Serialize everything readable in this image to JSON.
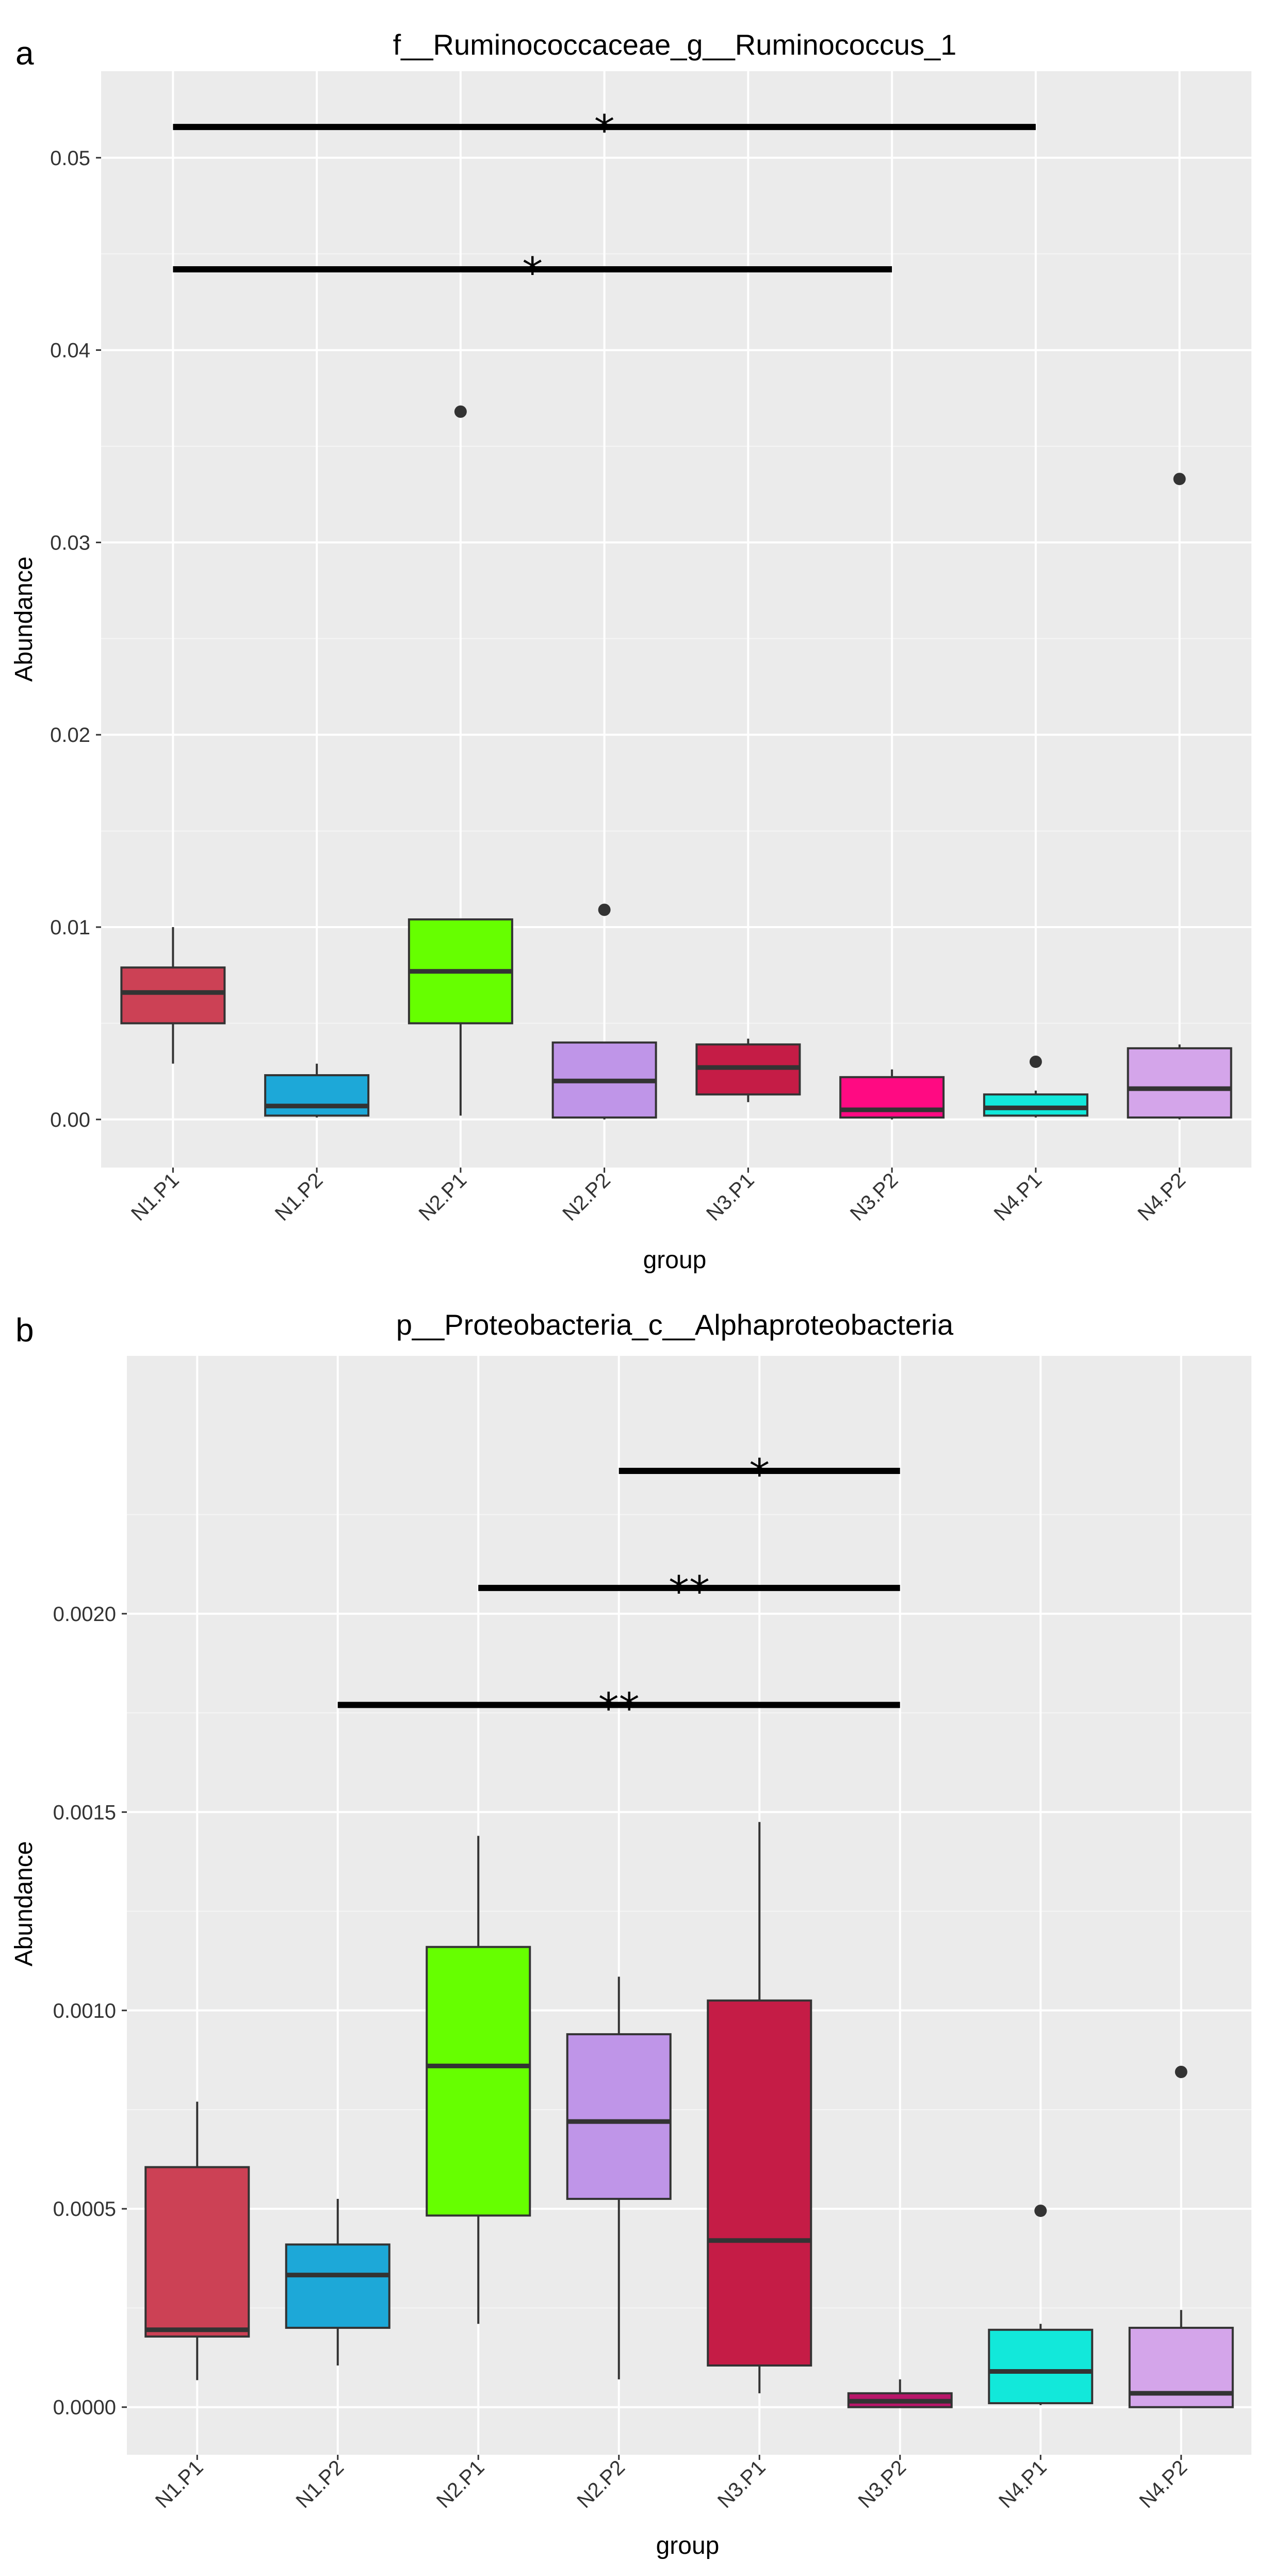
{
  "chart_data": [
    {
      "panel": "a",
      "type": "box",
      "title": "f__Ruminococcaceae_g__Ruminococcus_1",
      "xlabel": "group",
      "ylabel": "Abundance",
      "categories": [
        "N1.P1",
        "N1.P2",
        "N2.P1",
        "N2.P2",
        "N3.P1",
        "N3.P2",
        "N4.P1",
        "N4.P2"
      ],
      "ylim": [
        -0.0025,
        0.0545
      ],
      "yticks": [
        0.0,
        0.01,
        0.02,
        0.03,
        0.04,
        0.05
      ],
      "yticklabels": [
        "0.00",
        "0.01",
        "0.02",
        "0.03",
        "0.04",
        "0.05"
      ],
      "boxes": [
        {
          "group": "N1.P1",
          "color": "#CC4155",
          "lower_whisker": 0.0029,
          "q1": 0.005,
          "median": 0.0066,
          "q3": 0.0079,
          "upper_whisker": 0.01,
          "outliers": []
        },
        {
          "group": "N1.P2",
          "color": "#1DA8D8",
          "lower_whisker": 0.0001,
          "q1": 0.0002,
          "median": 0.0007,
          "q3": 0.0023,
          "upper_whisker": 0.0029,
          "outliers": []
        },
        {
          "group": "N2.P1",
          "color": "#66FF00",
          "lower_whisker": 0.0002,
          "q1": 0.005,
          "median": 0.0077,
          "q3": 0.0104,
          "upper_whisker": 0.0104,
          "outliers": [
            0.0368
          ]
        },
        {
          "group": "N2.P2",
          "color": "#BF95E8",
          "lower_whisker": 0.0,
          "q1": 0.0001,
          "median": 0.002,
          "q3": 0.004,
          "upper_whisker": 0.004,
          "outliers": [
            0.0109
          ]
        },
        {
          "group": "N3.P1",
          "color": "#C51C46",
          "lower_whisker": 0.0009,
          "q1": 0.0013,
          "median": 0.0027,
          "q3": 0.0039,
          "upper_whisker": 0.0042,
          "outliers": []
        },
        {
          "group": "N3.P2",
          "color": "#FF0A82",
          "lower_whisker": 0.0,
          "q1": 0.0001,
          "median": 0.0005,
          "q3": 0.0022,
          "upper_whisker": 0.0026,
          "outliers": []
        },
        {
          "group": "N4.P1",
          "color": "#12E8DA",
          "lower_whisker": 0.0001,
          "q1": 0.0002,
          "median": 0.0006,
          "q3": 0.0013,
          "upper_whisker": 0.0015,
          "outliers": [
            0.003
          ]
        },
        {
          "group": "N4.P2",
          "color": "#D4A5EA",
          "lower_whisker": 0.0,
          "q1": 0.0001,
          "median": 0.0016,
          "q3": 0.0037,
          "upper_whisker": 0.0039,
          "outliers": [
            0.0333
          ]
        }
      ],
      "significance": [
        {
          "from": "N1.P1",
          "to": "N4.P1",
          "y": 0.0516,
          "label": "*"
        },
        {
          "from": "N1.P1",
          "to": "N3.P2",
          "y": 0.0442,
          "label": "*"
        }
      ]
    },
    {
      "panel": "b",
      "type": "box",
      "title": "p__Proteobacteria_c__Alphaproteobacteria",
      "xlabel": "group",
      "ylabel": "Abundance",
      "categories": [
        "N1.P1",
        "N1.P2",
        "N2.P1",
        "N2.P2",
        "N3.P1",
        "N3.P2",
        "N4.P1",
        "N4.P2"
      ],
      "ylim": [
        -0.00012,
        0.00265
      ],
      "yticks": [
        0.0,
        0.0005,
        0.001,
        0.0015,
        0.002
      ],
      "yticklabels": [
        "0.0000",
        "0.0005",
        "0.0010",
        "0.0015",
        "0.0020"
      ],
      "boxes": [
        {
          "group": "N1.P1",
          "color": "#CC4155",
          "lower_whisker": 6.8e-05,
          "q1": 0.000178,
          "median": 0.000195,
          "q3": 0.000605,
          "upper_whisker": 0.00077,
          "outliers": []
        },
        {
          "group": "N1.P2",
          "color": "#1DA8D8",
          "lower_whisker": 0.000105,
          "q1": 0.0002,
          "median": 0.000333,
          "q3": 0.00041,
          "upper_whisker": 0.000525,
          "outliers": []
        },
        {
          "group": "N2.P1",
          "color": "#66FF00",
          "lower_whisker": 0.00021,
          "q1": 0.000483,
          "median": 0.00086,
          "q3": 0.00116,
          "upper_whisker": 0.00144,
          "outliers": []
        },
        {
          "group": "N2.P2",
          "color": "#BF95E8",
          "lower_whisker": 7e-05,
          "q1": 0.000525,
          "median": 0.00072,
          "q3": 0.00094,
          "upper_whisker": 0.001085,
          "outliers": []
        },
        {
          "group": "N3.P1",
          "color": "#C51C46",
          "lower_whisker": 3.5e-05,
          "q1": 0.000105,
          "median": 0.00042,
          "q3": 0.001025,
          "upper_whisker": 0.001475,
          "outliers": []
        },
        {
          "group": "N3.P2",
          "color": "#B81669",
          "lower_whisker": 0.0,
          "q1": 0.0,
          "median": 1.5e-05,
          "q3": 3.5e-05,
          "upper_whisker": 7e-05,
          "outliers": []
        },
        {
          "group": "N4.P1",
          "color": "#12E8DA",
          "lower_whisker": 5e-06,
          "q1": 1e-05,
          "median": 9e-05,
          "q3": 0.000195,
          "upper_whisker": 0.00021,
          "outliers": [
            0.000495
          ]
        },
        {
          "group": "N4.P2",
          "color": "#D4A5EA",
          "lower_whisker": 0.0,
          "q1": 0.0,
          "median": 3.5e-05,
          "q3": 0.0002,
          "upper_whisker": 0.000245,
          "outliers": [
            0.000845
          ]
        }
      ],
      "significance": [
        {
          "from": "N2.P2",
          "to": "N3.P2",
          "y": 0.00236,
          "label": "*"
        },
        {
          "from": "N2.P1",
          "to": "N3.P2",
          "y": 0.002065,
          "label": "**"
        },
        {
          "from": "N1.P2",
          "to": "N3.P2",
          "y": 0.00177,
          "label": "**"
        }
      ]
    }
  ]
}
